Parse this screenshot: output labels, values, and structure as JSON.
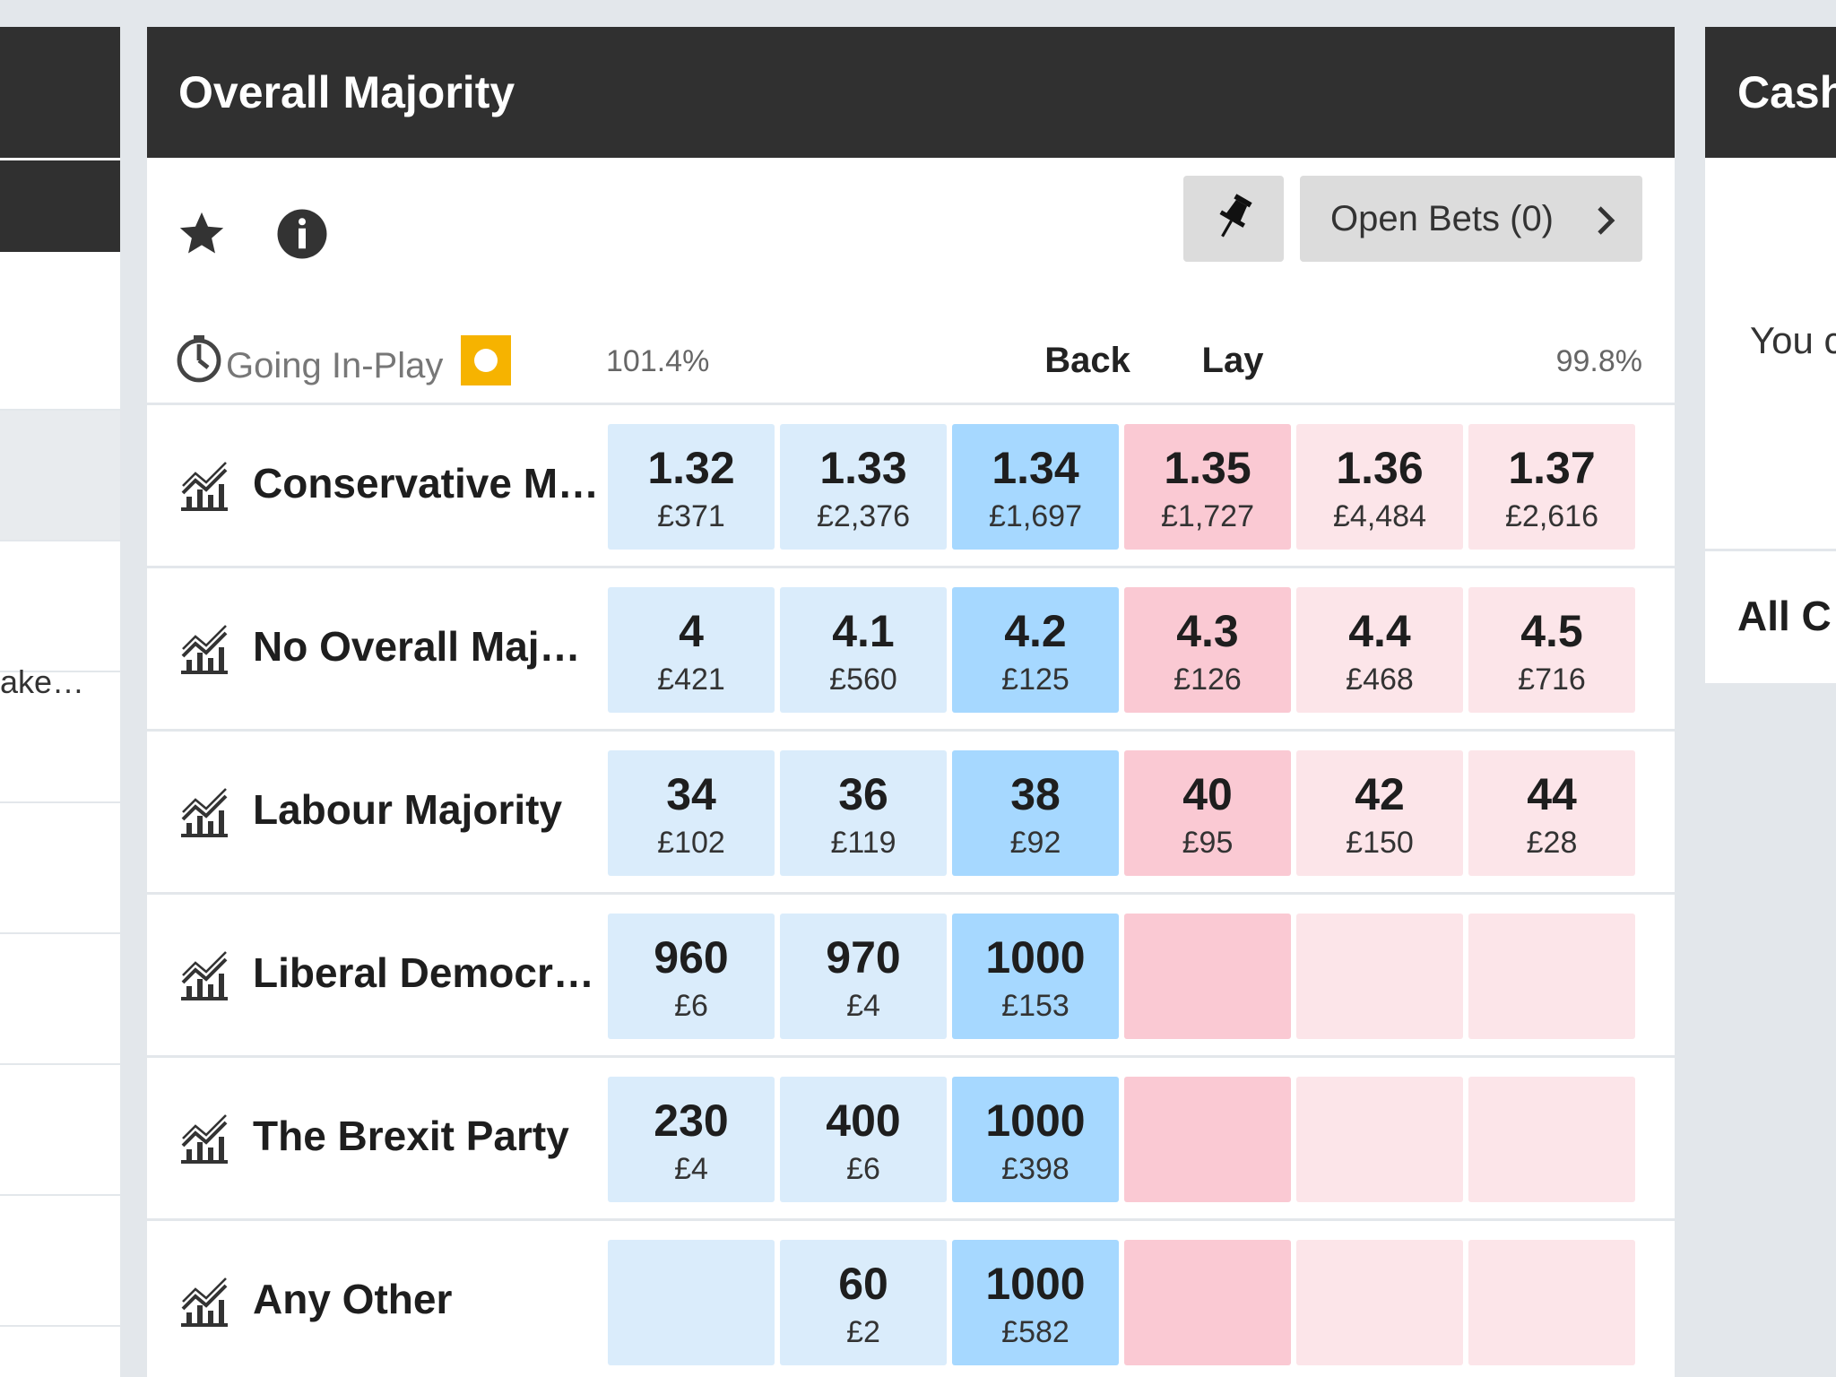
{
  "left_panel": {
    "truncated_text": "ake…"
  },
  "market": {
    "title": "Overall Majority",
    "open_bets_label": "Open Bets (0)",
    "going_in_play_label": "Going In-Play",
    "back_overround": "101.4%",
    "lay_overround": "99.8%",
    "back_label": "Back",
    "lay_label": "Lay",
    "runners": [
      {
        "name": "Conservative M…",
        "back3": {
          "odds": "1.32",
          "stake": "£371"
        },
        "back2": {
          "odds": "1.33",
          "stake": "£2,376"
        },
        "back1": {
          "odds": "1.34",
          "stake": "£1,697"
        },
        "lay1": {
          "odds": "1.35",
          "stake": "£1,727"
        },
        "lay2": {
          "odds": "1.36",
          "stake": "£4,484"
        },
        "lay3": {
          "odds": "1.37",
          "stake": "£2,616"
        }
      },
      {
        "name": "No Overall Maj…",
        "back3": {
          "odds": "4",
          "stake": "£421"
        },
        "back2": {
          "odds": "4.1",
          "stake": "£560"
        },
        "back1": {
          "odds": "4.2",
          "stake": "£125"
        },
        "lay1": {
          "odds": "4.3",
          "stake": "£126"
        },
        "lay2": {
          "odds": "4.4",
          "stake": "£468"
        },
        "lay3": {
          "odds": "4.5",
          "stake": "£716"
        }
      },
      {
        "name": "Labour Majority",
        "back3": {
          "odds": "34",
          "stake": "£102"
        },
        "back2": {
          "odds": "36",
          "stake": "£119"
        },
        "back1": {
          "odds": "38",
          "stake": "£92"
        },
        "lay1": {
          "odds": "40",
          "stake": "£95"
        },
        "lay2": {
          "odds": "42",
          "stake": "£150"
        },
        "lay3": {
          "odds": "44",
          "stake": "£28"
        }
      },
      {
        "name": "Liberal Democr…",
        "back3": {
          "odds": "960",
          "stake": "£6"
        },
        "back2": {
          "odds": "970",
          "stake": "£4"
        },
        "back1": {
          "odds": "1000",
          "stake": "£153"
        },
        "lay1": {
          "odds": "",
          "stake": ""
        },
        "lay2": {
          "odds": "",
          "stake": ""
        },
        "lay3": {
          "odds": "",
          "stake": ""
        }
      },
      {
        "name": "The Brexit Party",
        "back3": {
          "odds": "230",
          "stake": "£4"
        },
        "back2": {
          "odds": "400",
          "stake": "£6"
        },
        "back1": {
          "odds": "1000",
          "stake": "£398"
        },
        "lay1": {
          "odds": "",
          "stake": ""
        },
        "lay2": {
          "odds": "",
          "stake": ""
        },
        "lay3": {
          "odds": "",
          "stake": ""
        }
      },
      {
        "name": "Any Other",
        "back3": {
          "odds": "",
          "stake": ""
        },
        "back2": {
          "odds": "60",
          "stake": "£2"
        },
        "back1": {
          "odds": "1000",
          "stake": "£582"
        },
        "lay1": {
          "odds": "",
          "stake": ""
        },
        "lay2": {
          "odds": "",
          "stake": ""
        },
        "lay3": {
          "odds": "",
          "stake": ""
        }
      }
    ]
  },
  "right_panel": {
    "title": "Cash",
    "message": "You c",
    "all_label": "All C"
  },
  "colors": {
    "header_bg": "#303030",
    "back_best": "#a6d8ff",
    "back_other": "#daecfb",
    "lay_best": "#fac9d3",
    "lay_other": "#fce5e9",
    "in_play_badge": "#f6b300"
  },
  "icons": [
    "star-icon",
    "info-icon",
    "pin-icon",
    "chevron-right-icon",
    "clock-icon",
    "chart-icon"
  ]
}
